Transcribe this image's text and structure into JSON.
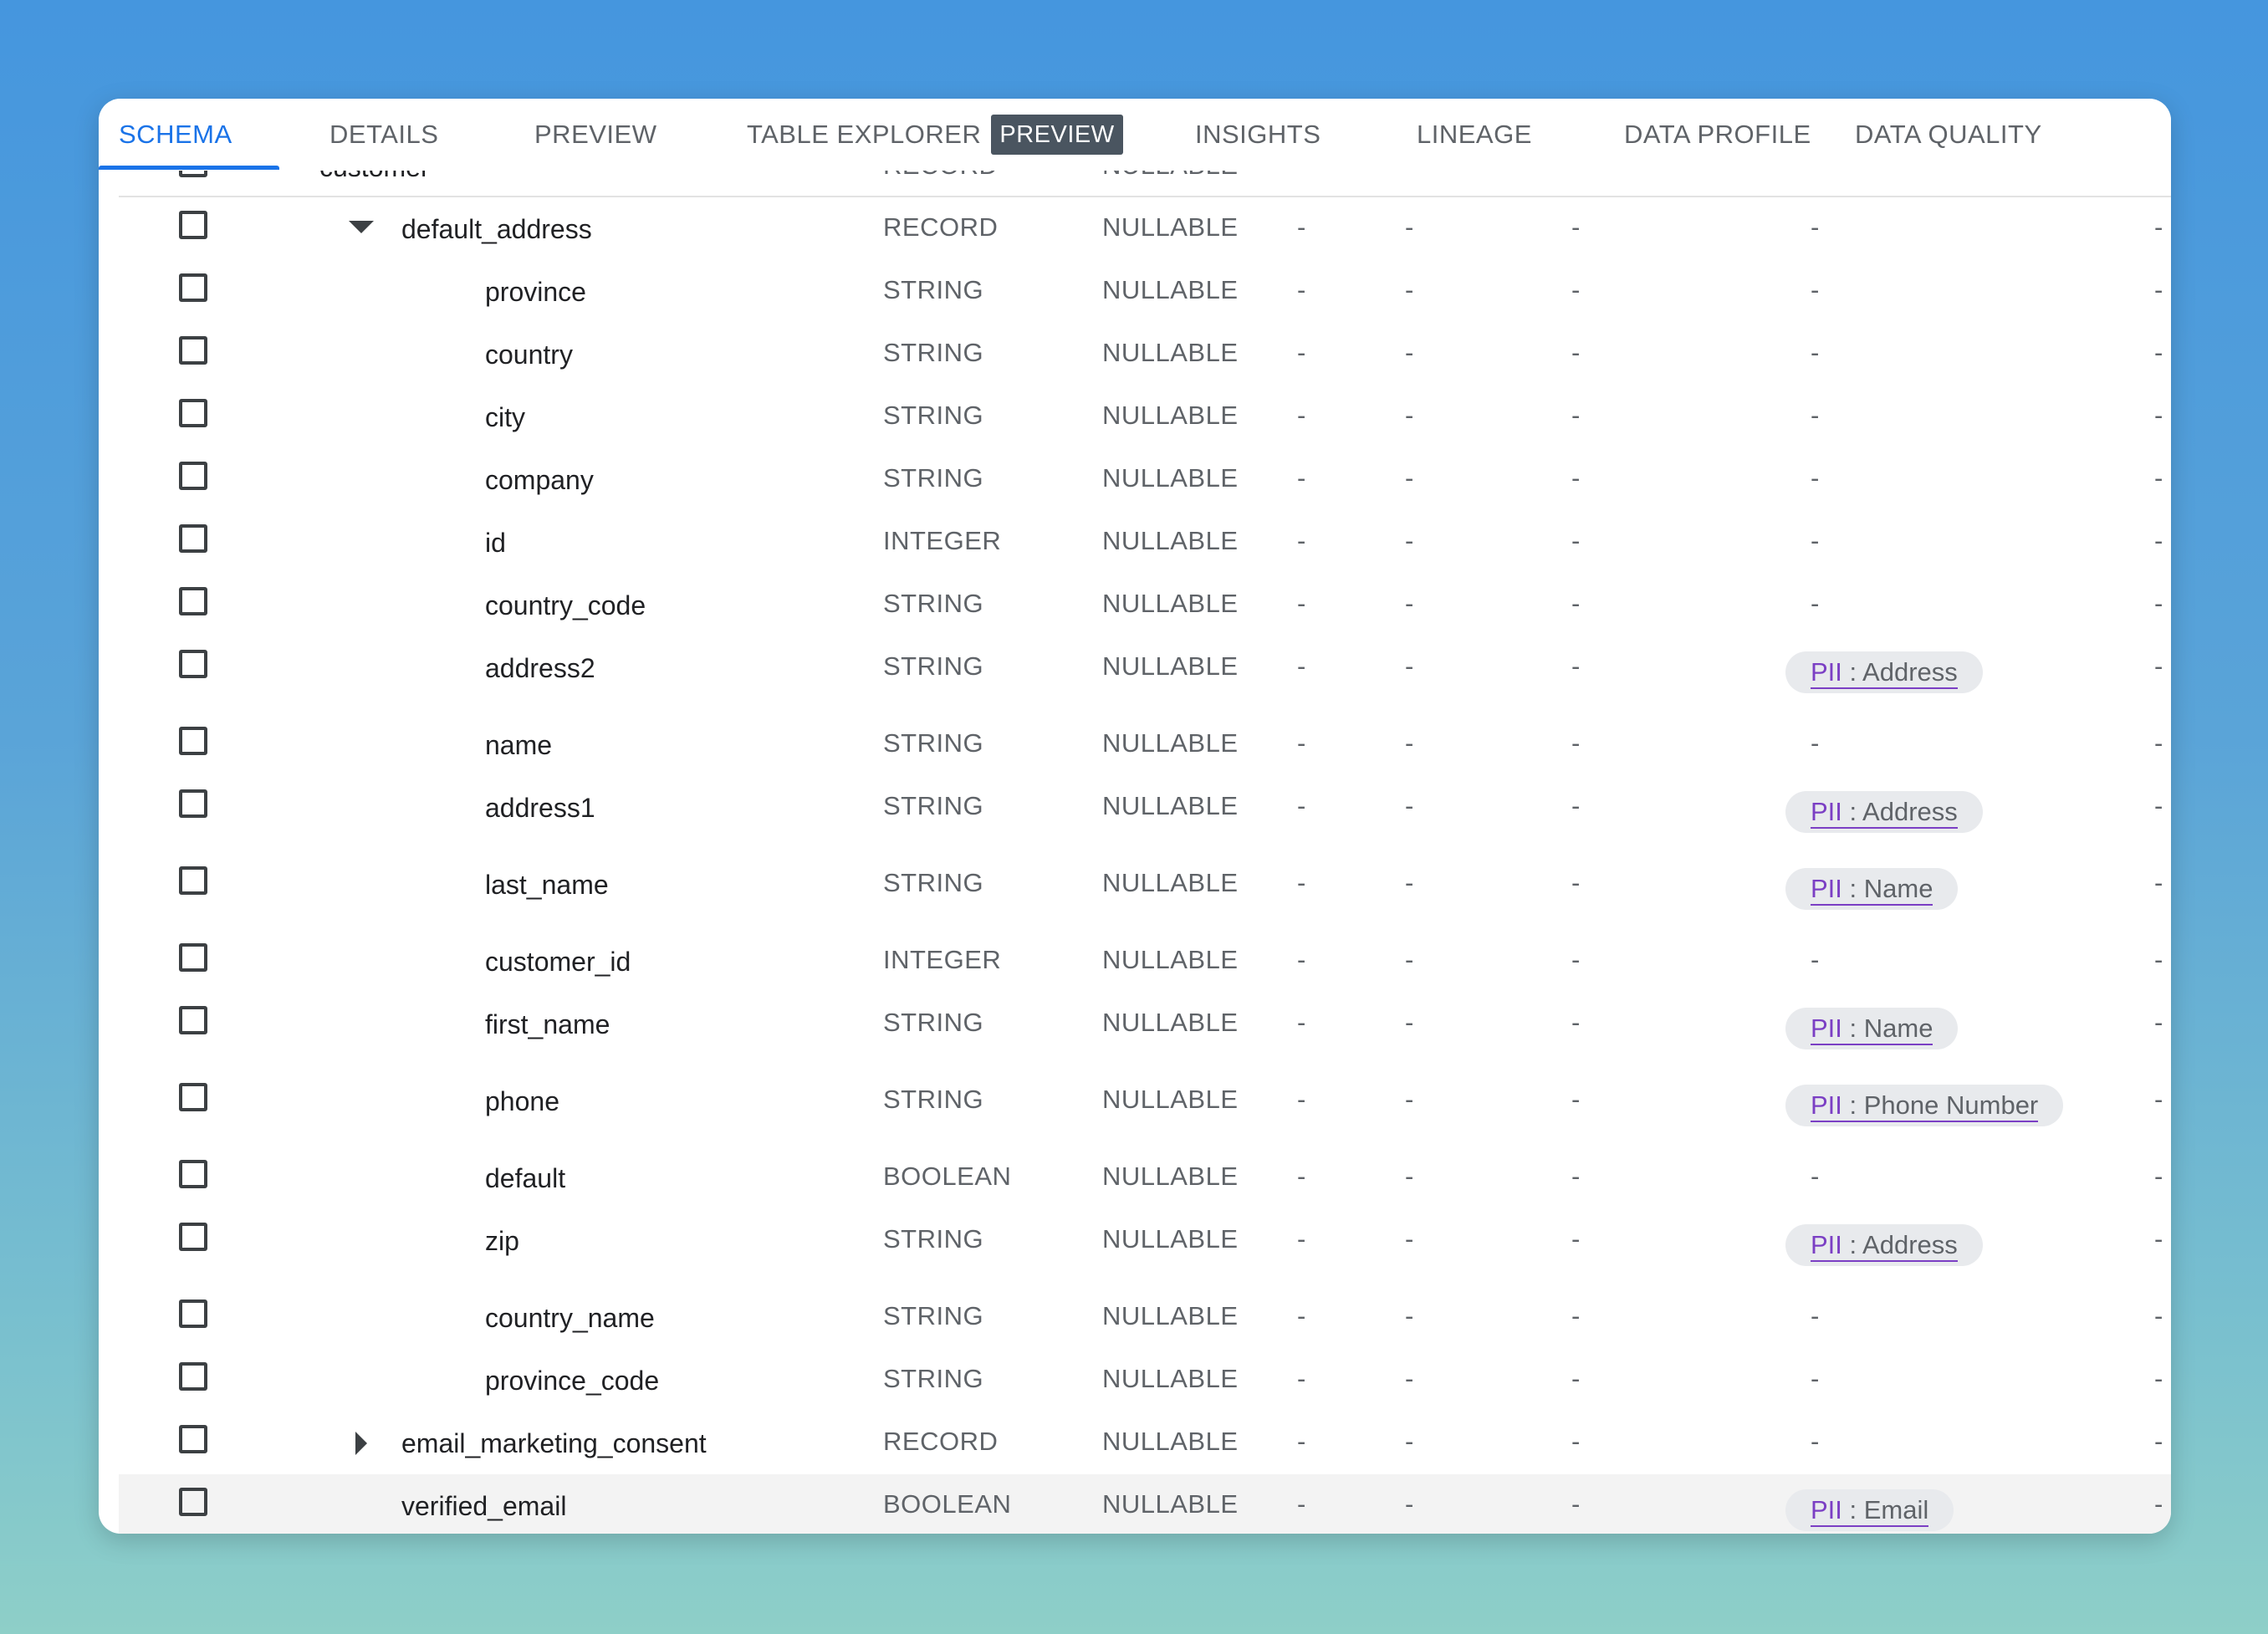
{
  "tabs": [
    {
      "label": "SCHEMA",
      "active": true
    },
    {
      "label": "DETAILS"
    },
    {
      "label": "PREVIEW"
    },
    {
      "label": "TABLE EXPLORER",
      "badge": "PREVIEW"
    },
    {
      "label": "INSIGHTS"
    },
    {
      "label": "LINEAGE"
    },
    {
      "label": "DATA PROFILE"
    },
    {
      "label": "DATA QUALITY"
    }
  ],
  "partial_row": {
    "name": "customer",
    "type": "RECORD",
    "mode": "NULLABLE"
  },
  "rows": [
    {
      "name": "default_address",
      "type": "RECORD",
      "mode": "NULLABLE",
      "expander": "expanded",
      "level": 1
    },
    {
      "name": "province",
      "type": "STRING",
      "mode": "NULLABLE",
      "level": 2
    },
    {
      "name": "country",
      "type": "STRING",
      "mode": "NULLABLE",
      "level": 2
    },
    {
      "name": "city",
      "type": "STRING",
      "mode": "NULLABLE",
      "level": 2
    },
    {
      "name": "company",
      "type": "STRING",
      "mode": "NULLABLE",
      "level": 2
    },
    {
      "name": "id",
      "type": "INTEGER",
      "mode": "NULLABLE",
      "level": 2
    },
    {
      "name": "country_code",
      "type": "STRING",
      "mode": "NULLABLE",
      "level": 2
    },
    {
      "name": "address2",
      "type": "STRING",
      "mode": "NULLABLE",
      "level": 2,
      "tag": {
        "prefix": "PII",
        "value": "Address"
      }
    },
    {
      "name": "name",
      "type": "STRING",
      "mode": "NULLABLE",
      "level": 2
    },
    {
      "name": "address1",
      "type": "STRING",
      "mode": "NULLABLE",
      "level": 2,
      "tag": {
        "prefix": "PII",
        "value": "Address"
      }
    },
    {
      "name": "last_name",
      "type": "STRING",
      "mode": "NULLABLE",
      "level": 2,
      "tag": {
        "prefix": "PII",
        "value": "Name"
      }
    },
    {
      "name": "customer_id",
      "type": "INTEGER",
      "mode": "NULLABLE",
      "level": 2
    },
    {
      "name": "first_name",
      "type": "STRING",
      "mode": "NULLABLE",
      "level": 2,
      "tag": {
        "prefix": "PII",
        "value": "Name"
      }
    },
    {
      "name": "phone",
      "type": "STRING",
      "mode": "NULLABLE",
      "level": 2,
      "tag": {
        "prefix": "PII",
        "value": "Phone Number"
      }
    },
    {
      "name": "default",
      "type": "BOOLEAN",
      "mode": "NULLABLE",
      "level": 2
    },
    {
      "name": "zip",
      "type": "STRING",
      "mode": "NULLABLE",
      "level": 2,
      "tag": {
        "prefix": "PII",
        "value": "Address"
      }
    },
    {
      "name": "country_name",
      "type": "STRING",
      "mode": "NULLABLE",
      "level": 2
    },
    {
      "name": "province_code",
      "type": "STRING",
      "mode": "NULLABLE",
      "level": 2
    },
    {
      "name": "email_marketing_consent",
      "type": "RECORD",
      "mode": "NULLABLE",
      "expander": "collapsed",
      "level": 1
    },
    {
      "name": "verified_email",
      "type": "BOOLEAN",
      "mode": "NULLABLE",
      "level": 1,
      "highlighted": true,
      "tag": {
        "prefix": "PII",
        "value": "Email"
      }
    }
  ],
  "empty_cell": "-",
  "colors": {
    "accent": "#1a73e8",
    "pii": "#7b3fc4",
    "chip_bg": "#e8eaed"
  },
  "icons": {
    "expanded": "caret-down-icon",
    "collapsed": "caret-right-icon",
    "checkbox": "checkbox-unchecked-icon"
  }
}
